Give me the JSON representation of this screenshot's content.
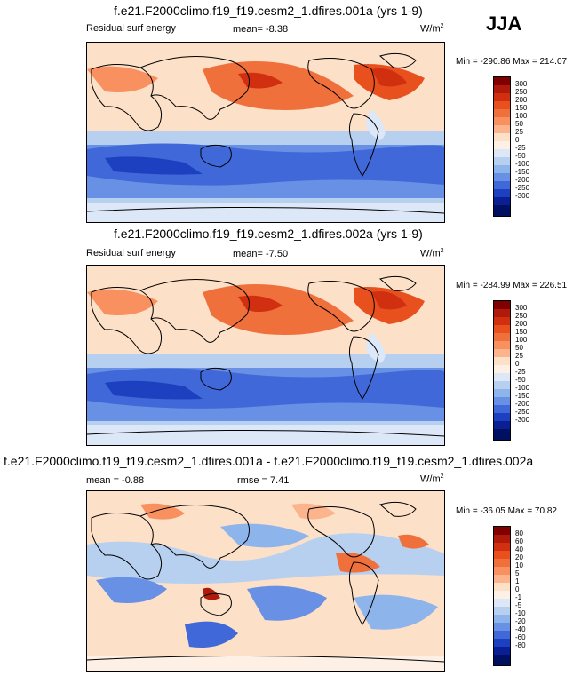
{
  "season": "JJA",
  "panels": [
    {
      "title": "f.e21.F2000climo.f19_f19.cesm2_1.dfires.001a (yrs 1-9)",
      "left_label": "Residual surf energy",
      "center_label": "mean=  -8.38",
      "units": "W/m",
      "units_sup": "2",
      "minmax": "Min = -290.86 Max = 214.07",
      "colorbar": [
        "300",
        "250",
        "200",
        "150",
        "100",
        "50",
        "25",
        "0",
        "-25",
        "-50",
        "-100",
        "-150",
        "-200",
        "-250",
        "-300"
      ]
    },
    {
      "title": "f.e21.F2000climo.f19_f19.cesm2_1.dfires.002a (yrs 1-9)",
      "left_label": "Residual surf energy",
      "center_label": "mean=  -7.50",
      "units": "W/m",
      "units_sup": "2",
      "minmax": "Min = -284.99 Max = 226.51",
      "colorbar": [
        "300",
        "250",
        "200",
        "150",
        "100",
        "50",
        "25",
        "0",
        "-25",
        "-50",
        "-100",
        "-150",
        "-200",
        "-250",
        "-300"
      ]
    },
    {
      "title": "f.e21.F2000climo.f19_f19.cesm2_1.dfires.001a - f.e21.F2000climo.f19_f19.cesm2_1.dfires.002a",
      "left_label": "mean =  -0.88",
      "center_label": "rmse =  7.41",
      "units": "W/m",
      "units_sup": "2",
      "minmax": "Min = -36.05 Max =  70.82",
      "colorbar": [
        "80",
        "60",
        "40",
        "20",
        "10",
        "5",
        "1",
        "0",
        "-1",
        "-5",
        "-10",
        "-20",
        "-40",
        "-60",
        "-80"
      ]
    }
  ],
  "colors": {
    "scale": [
      "#800000",
      "#b01a0a",
      "#d03010",
      "#e8501e",
      "#f0703c",
      "#f89060",
      "#fcb48c",
      "#fde0c8",
      "#fef0e4",
      "#dce8f8",
      "#b8d0f0",
      "#8eb4ec",
      "#6890e4",
      "#4068d8",
      "#1c40c0",
      "#0c1e94",
      "#001060"
    ]
  }
}
